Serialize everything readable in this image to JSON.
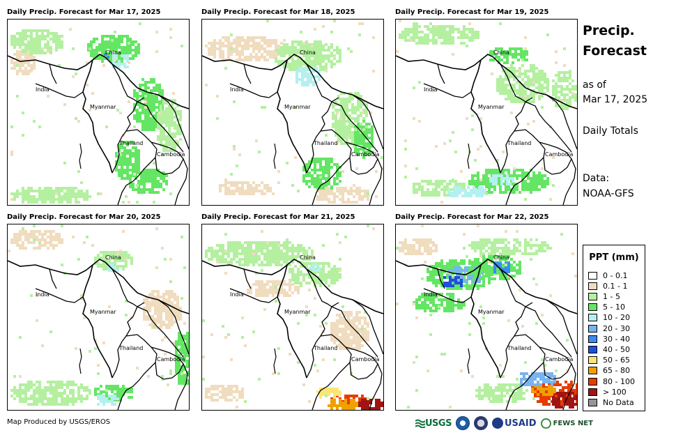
{
  "panels": [
    {
      "title": "Daily Precip. Forecast for Mar 17, 2025"
    },
    {
      "title": "Daily Precip. Forecast for Mar 18, 2025"
    },
    {
      "title": "Daily Precip. Forecast for Mar 19, 2025"
    },
    {
      "title": "Daily Precip. Forecast for Mar 20, 2025"
    },
    {
      "title": "Daily Precip. Forecast for Mar 21, 2025"
    },
    {
      "title": "Daily Precip. Forecast for Mar 22, 2025"
    }
  ],
  "map_labels": {
    "china": "China",
    "india": "India",
    "myanmar": "Myanmar",
    "thailand": "Thailand",
    "cambodia": "Cambodia"
  },
  "side": {
    "title_line1": "Precip.",
    "title_line2": "Forecast",
    "as_of": "as of",
    "date": "Mar 17, 2025",
    "totals": "Daily Totals",
    "data_label": "Data:",
    "data_source": "NOAA-GFS"
  },
  "legend": {
    "title": "PPT (mm)",
    "items": [
      {
        "label": "0 - 0.1",
        "color": "#ffffff"
      },
      {
        "label": "0.1 - 1",
        "color": "#f0dcbe"
      },
      {
        "label": "1 - 5",
        "color": "#b4f0a0"
      },
      {
        "label": "5 - 10",
        "color": "#64e664"
      },
      {
        "label": "10 - 20",
        "color": "#b4f0f0"
      },
      {
        "label": "20 - 30",
        "color": "#78b4f0"
      },
      {
        "label": "30 - 40",
        "color": "#3c8cf0"
      },
      {
        "label": "40 - 50",
        "color": "#1e50dc"
      },
      {
        "label": "50 - 65",
        "color": "#fae678"
      },
      {
        "label": "65 - 80",
        "color": "#f0a000"
      },
      {
        "label": "80 - 100",
        "color": "#e63c00"
      },
      {
        "label": "> 100",
        "color": "#a01414"
      },
      {
        "label": "No Data",
        "color": "#969696"
      }
    ]
  },
  "footer": {
    "credit": "Map Produced by USGS/EROS",
    "usgs": "USGS",
    "usaid": "USAID",
    "fews": "FEWS NET"
  },
  "icons": [
    "usgs-logo-icon",
    "noaa-logo-icon",
    "dos-seal-icon",
    "usaid-logo-icon",
    "fews-net-logo-icon"
  ]
}
